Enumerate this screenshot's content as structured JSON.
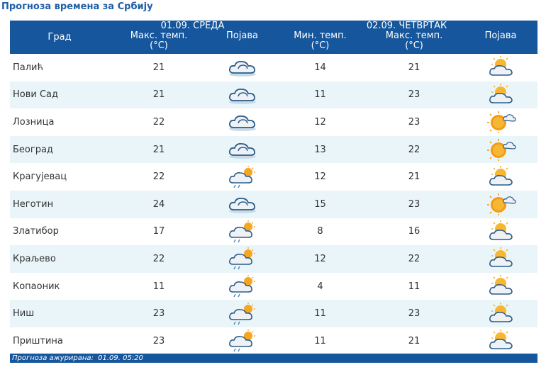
{
  "page_title": "Прогноза времена за Србију",
  "header": {
    "city": "Град",
    "day1": "01.09. СРЕДА",
    "day2": "02.09. ЧЕТВРТАК",
    "max_temp": "Макс. темп.",
    "min_temp": "Мин. темп.",
    "unit": "(°C)",
    "phenomenon": "Појава"
  },
  "rows": [
    {
      "city": "Палић",
      "d1_max": "21",
      "d1_icon": "cloudy-icon",
      "d2_min": "14",
      "d2_max": "21",
      "d2_icon": "partly-cloudy-icon"
    },
    {
      "city": "Нови Сад",
      "d1_max": "21",
      "d1_icon": "cloudy-icon",
      "d2_min": "11",
      "d2_max": "23",
      "d2_icon": "partly-cloudy-icon"
    },
    {
      "city": "Лозница",
      "d1_max": "22",
      "d1_icon": "cloudy-icon",
      "d2_min": "12",
      "d2_max": "23",
      "d2_icon": "mostly-sunny-icon"
    },
    {
      "city": "Београд",
      "d1_max": "21",
      "d1_icon": "cloudy-icon",
      "d2_min": "13",
      "d2_max": "22",
      "d2_icon": "mostly-sunny-icon"
    },
    {
      "city": "Крагујевац",
      "d1_max": "22",
      "d1_icon": "sun-cloud-showers-icon",
      "d2_min": "12",
      "d2_max": "21",
      "d2_icon": "partly-cloudy-icon"
    },
    {
      "city": "Неготин",
      "d1_max": "24",
      "d1_icon": "cloudy-icon",
      "d2_min": "15",
      "d2_max": "23",
      "d2_icon": "mostly-sunny-icon"
    },
    {
      "city": "Златибор",
      "d1_max": "17",
      "d1_icon": "sun-cloud-showers-icon",
      "d2_min": "8",
      "d2_max": "16",
      "d2_icon": "partly-cloudy-icon"
    },
    {
      "city": "Краљево",
      "d1_max": "22",
      "d1_icon": "sun-cloud-showers-icon",
      "d2_min": "12",
      "d2_max": "22",
      "d2_icon": "partly-cloudy-icon"
    },
    {
      "city": "Копаоник",
      "d1_max": "11",
      "d1_icon": "sun-cloud-showers-icon",
      "d2_min": "4",
      "d2_max": "11",
      "d2_icon": "partly-cloudy-icon"
    },
    {
      "city": "Ниш",
      "d1_max": "23",
      "d1_icon": "sun-cloud-showers-icon",
      "d2_min": "11",
      "d2_max": "23",
      "d2_icon": "partly-cloudy-icon"
    },
    {
      "city": "Приштина",
      "d1_max": "23",
      "d1_icon": "sun-cloud-showers-icon",
      "d2_min": "11",
      "d2_max": "21",
      "d2_icon": "partly-cloudy-icon"
    }
  ],
  "footer": {
    "label": "Прогноза ажурирана:",
    "value": "01.09. 05:20"
  },
  "colors": {
    "header_bg": "#16569c",
    "row_alt_bg": "#eaf5fa",
    "title_color": "#1f5fa6",
    "text": "#333333"
  }
}
